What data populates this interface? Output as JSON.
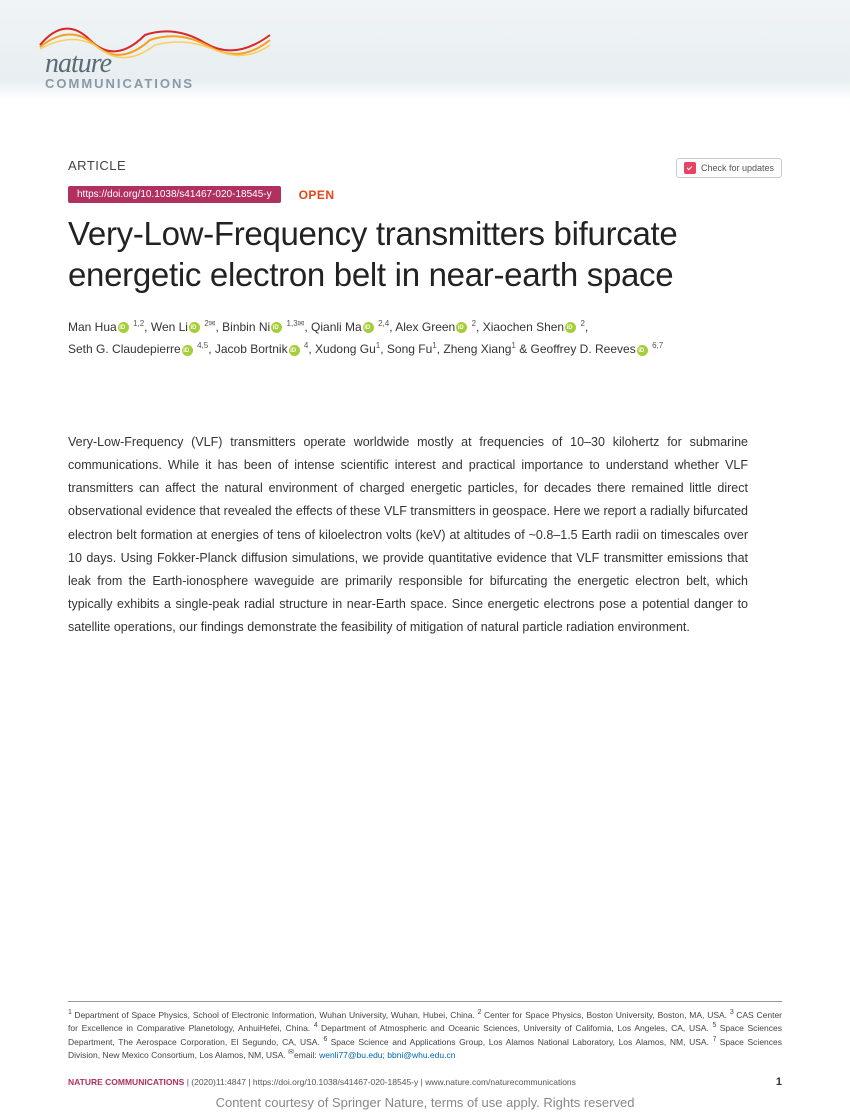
{
  "journal": {
    "name": "nature",
    "sub": "COMMUNICATIONS"
  },
  "article_label": "ARTICLE",
  "check_updates": "Check for updates",
  "doi": "https://doi.org/10.1038/s41467-020-18545-y",
  "open_access": "OPEN",
  "title": "Very-Low-Frequency transmitters bifurcate energetic electron belt in near-earth space",
  "authors_line1_html": "Man Hua{orc} <sup>1,2</sup>, Wen Li{orc} <sup>2✉</sup>, Binbin Ni{orc} <sup>1,3✉</sup>, Qianli Ma{orc} <sup>2,4</sup>, Alex Green{orc} <sup>2</sup>, Xiaochen Shen{orc} <sup>2</sup>,",
  "authors_line2_html": "Seth G. Claudepierre{orc} <sup>4,5</sup>, Jacob Bortnik{orc} <sup>4</sup>, Xudong Gu<sup>1</sup>, Song Fu<sup>1</sup>, Zheng Xiang<sup>1</sup> & Geoffrey D. Reeves{orc} <sup>6,7</sup>",
  "abstract": "Very-Low-Frequency (VLF) transmitters operate worldwide mostly at frequencies of 10–30 kilohertz for submarine communications. While it has been of intense scientific interest and practical importance to understand whether VLF transmitters can affect the natural environment of charged energetic particles, for decades there remained little direct observational evidence that revealed the effects of these VLF transmitters in geospace. Here we report a radially bifurcated electron belt formation at energies of tens of kiloelectron volts (keV) at altitudes of ~0.8–1.5 Earth radii on timescales over 10 days. Using Fokker-Planck diffusion simulations, we provide quantitative evidence that VLF transmitter emissions that leak from the Earth-ionosphere waveguide are primarily responsible for bifurcating the energetic electron belt, which typically exhibits a single-peak radial structure in near-Earth space. Since energetic electrons pose a potential danger to satellite operations, our findings demonstrate the feasibility of mitigation of natural particle radiation environment.",
  "affiliations": {
    "a1": "Department of Space Physics, School of Electronic Information, Wuhan University, Wuhan, Hubei, China.",
    "a2": "Center for Space Physics, Boston University, Boston, MA, USA.",
    "a3": "CAS Center for Excellence in Comparative Planetology, AnhuiHefei, China.",
    "a4": "Department of Atmospheric and Oceanic Sciences, University of California, Los Angeles, CA, USA.",
    "a5": "Space Sciences Department, The Aerospace Corporation, El Segundo, CA, USA.",
    "a6": "Space Science and Applications Group, Los Alamos National Laboratory, Los Alamos, NM, USA.",
    "a7": "Space Sciences Division, New Mexico Consortium, Los Alamos, NM, USA.",
    "email_label": "email:",
    "email1": "wenli77@bu.edu",
    "email2": "bbni@whu.edu.cn"
  },
  "citation": {
    "journal": "NATURE COMMUNICATIONS",
    "details": "| (2020)11:4847 | https://doi.org/10.1038/s41467-020-18545-y | www.nature.com/naturecommunications"
  },
  "page_number": "1",
  "courtesy": "Content courtesy of Springer Nature, terms of use apply. Rights reserved",
  "colors": {
    "header_bg": "#e8eef1",
    "doi_badge": "#b03060",
    "open_color": "#e84518",
    "orcid": "#a6ce39",
    "link": "#0066aa"
  }
}
